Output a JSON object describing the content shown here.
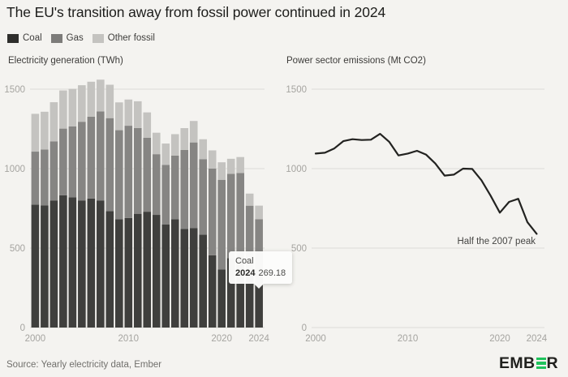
{
  "title": "The EU's transition away from fossil power continued in 2024",
  "legend": {
    "items": [
      {
        "label": "Coal",
        "color": "#2e2e2c"
      },
      {
        "label": "Gas",
        "color": "#7d7c7a"
      },
      {
        "label": "Other fossil",
        "color": "#c4c3c0"
      }
    ]
  },
  "tooltip": {
    "series": "Coal",
    "year": "2024",
    "value": "269.18"
  },
  "footer": {
    "source": "Source: Yearly electricity data, Ember",
    "logo_left": "EMB",
    "logo_right": "R",
    "logo_accent": "#1fc35c"
  },
  "chart_data": [
    {
      "type": "bar",
      "stacked": true,
      "title": "Electricity generation (TWh)",
      "x": [
        2000,
        2001,
        2002,
        2003,
        2004,
        2005,
        2006,
        2007,
        2008,
        2009,
        2010,
        2011,
        2012,
        2013,
        2014,
        2015,
        2016,
        2017,
        2018,
        2019,
        2020,
        2021,
        2022,
        2023,
        2024
      ],
      "series": [
        {
          "name": "Coal",
          "color": "#3f3f3d",
          "values": [
            774,
            768,
            800,
            832,
            820,
            800,
            812,
            800,
            733,
            682,
            690,
            716,
            729,
            709,
            648,
            682,
            620,
            625,
            585,
            455,
            365,
            437,
            446,
            333,
            269.18
          ]
        },
        {
          "name": "Gas",
          "color": "#868583",
          "values": [
            333,
            352,
            372,
            420,
            446,
            495,
            515,
            560,
            585,
            560,
            580,
            540,
            465,
            382,
            375,
            400,
            498,
            540,
            475,
            545,
            565,
            530,
            527,
            434,
            413
          ]
        },
        {
          "name": "Other fossil",
          "color": "#c4c3c0",
          "values": [
            238,
            238,
            246,
            240,
            236,
            230,
            220,
            200,
            210,
            175,
            165,
            168,
            160,
            135,
            135,
            135,
            137,
            135,
            125,
            115,
            110,
            95,
            100,
            76,
            85
          ]
        }
      ],
      "ylim": [
        0,
        1600
      ],
      "yticks": [
        0,
        500,
        1000,
        1500
      ],
      "xticks": [
        2000,
        2010,
        2020,
        2024
      ],
      "grid": true,
      "ylabel": "",
      "xlabel": ""
    },
    {
      "type": "line",
      "title": "Power sector emissions (Mt CO2)",
      "x": [
        2000,
        2001,
        2002,
        2003,
        2004,
        2005,
        2006,
        2007,
        2008,
        2009,
        2010,
        2011,
        2012,
        2013,
        2014,
        2015,
        2016,
        2017,
        2018,
        2019,
        2020,
        2021,
        2022,
        2023,
        2024
      ],
      "series": [
        {
          "name": "Power sector emissions",
          "color": "#222220",
          "values": [
            1095,
            1100,
            1126,
            1173,
            1185,
            1180,
            1182,
            1219,
            1168,
            1083,
            1095,
            1112,
            1088,
            1032,
            956,
            962,
            1000,
            998,
            927,
            830,
            723,
            791,
            810,
            663,
            590
          ]
        }
      ],
      "ylim": [
        0,
        1600
      ],
      "yticks": [
        0,
        500,
        1000,
        1500
      ],
      "xticks": [
        2000,
        2010,
        2020,
        2024
      ],
      "grid": true,
      "annotation": {
        "text": "Half the 2007 peak"
      },
      "ylabel": "",
      "xlabel": ""
    }
  ]
}
